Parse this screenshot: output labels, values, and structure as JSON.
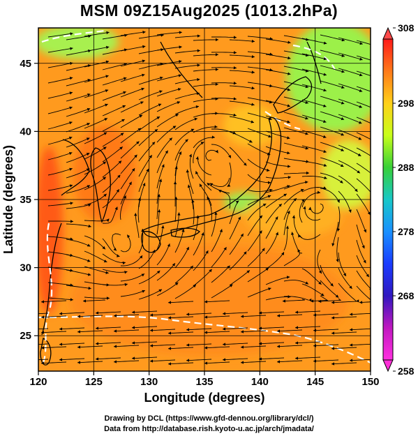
{
  "title": "MSM 09Z15Aug2025 (1013.2hPa)",
  "footer": {
    "line1": "Drawing by DCL (https://www.gfd-dennou.org/library/dcl/)",
    "line2": "Data from http://database.rish.kyoto-u.ac.jp/arch/jmadata/"
  },
  "map": {
    "xlabel": "Longitude (degrees)",
    "ylabel": "Latitude  (degrees)",
    "lon_range": [
      120,
      150
    ],
    "lat_range": [
      22.4,
      47.6
    ],
    "lon_ticks": [
      "120",
      "125",
      "130",
      "135",
      "140",
      "145",
      "150"
    ],
    "lat_ticks": [
      "25",
      "30",
      "35",
      "40",
      "45"
    ],
    "grid": true
  },
  "colorbar": {
    "min": 258,
    "max": 308,
    "ticks": [
      "308",
      "298",
      "288",
      "278",
      "268",
      "258"
    ],
    "colors": [
      "#ff1a1a",
      "#ff7a1a",
      "#ffd01a",
      "#c8ff1a",
      "#38d038",
      "#18c8c8",
      "#1a90ff",
      "#1a3cff",
      "#3018c0",
      "#c018c0",
      "#ff30e0"
    ]
  }
}
